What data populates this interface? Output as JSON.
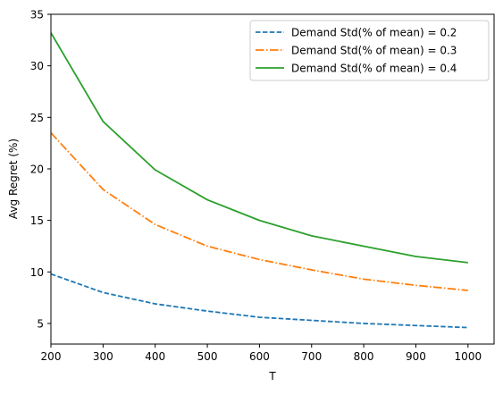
{
  "chart_data": {
    "type": "line",
    "title": "",
    "xlabel": "T",
    "ylabel": "Avg Regret (%)",
    "xlim": [
      200,
      1050
    ],
    "ylim": [
      3,
      35
    ],
    "xticks": [
      200,
      300,
      400,
      500,
      600,
      700,
      800,
      900,
      1000
    ],
    "yticks": [
      5,
      10,
      15,
      20,
      25,
      30,
      35
    ],
    "grid": false,
    "legend_position": "top-right",
    "x": [
      200,
      300,
      400,
      500,
      600,
      700,
      800,
      900,
      1000
    ],
    "series": [
      {
        "name": "Demand Std(% of mean) = 0.2",
        "color": "#1f77b4",
        "line_style": "dashed",
        "values": [
          9.8,
          8.0,
          6.9,
          6.2,
          5.6,
          5.3,
          5.0,
          4.8,
          4.6
        ]
      },
      {
        "name": "Demand Std(% of mean) = 0.3",
        "color": "#ff7f0e",
        "line_style": "dash-dot",
        "values": [
          23.5,
          18.0,
          14.6,
          12.5,
          11.2,
          10.2,
          9.3,
          8.7,
          8.2
        ]
      },
      {
        "name": "Demand Std(% of mean) = 0.4",
        "color": "#2ca02c",
        "line_style": "solid",
        "values": [
          33.2,
          24.6,
          19.9,
          17.0,
          15.0,
          13.5,
          12.5,
          11.5,
          10.9
        ]
      }
    ]
  }
}
